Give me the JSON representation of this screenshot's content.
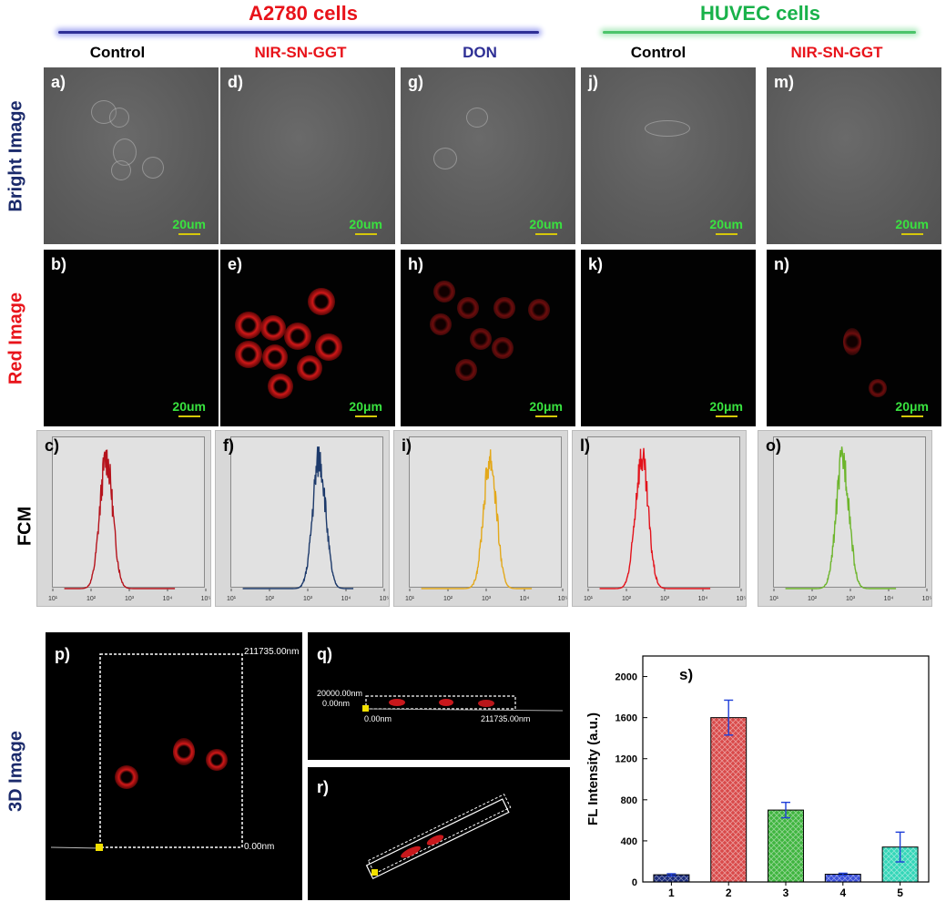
{
  "headers": {
    "a2780": "A2780 cells",
    "huvec": "HUVEC cells"
  },
  "columns": [
    "Control",
    "NIR-SN-GGT",
    "DON",
    "Control",
    "NIR-SN-GGT"
  ],
  "rows": {
    "bright": "Bright Image",
    "red": "Red Image",
    "fcm": "FCM",
    "threed": "3D Image"
  },
  "panels": {
    "bright": [
      {
        "label": "a)",
        "scale": "20um"
      },
      {
        "label": "d)",
        "scale": "20um"
      },
      {
        "label": "g)",
        "scale": "20um"
      },
      {
        "label": "j)",
        "scale": "20um"
      },
      {
        "label": "m)",
        "scale": "20um"
      }
    ],
    "red": [
      {
        "label": "b)",
        "scale": "20um"
      },
      {
        "label": "e)",
        "scale": "20μm"
      },
      {
        "label": "h)",
        "scale": "20μm"
      },
      {
        "label": "k)",
        "scale": "20μm"
      },
      {
        "label": "n)",
        "scale": "20μm"
      }
    ],
    "fcm": [
      {
        "label": "c)",
        "color": "#b5121b",
        "peak_log10": 2.4
      },
      {
        "label": "f)",
        "color": "#1d3a6b",
        "peak_log10": 3.3
      },
      {
        "label": "i)",
        "color": "#e3a81a",
        "peak_log10": 3.1
      },
      {
        "label": "l)",
        "color": "#e3121b",
        "peak_log10": 2.4
      },
      {
        "label": "o)",
        "color": "#6cb52b",
        "peak_log10": 2.8
      }
    ],
    "fcm_ticks": [
      "10¹",
      "10²",
      "10³",
      "10⁴",
      "10⁵"
    ]
  },
  "threed": {
    "p": {
      "label": "p)",
      "top_val": "211735.00nm",
      "bottom_val": "0.00nm"
    },
    "q": {
      "label": "q)",
      "y_top": "20000.00nm",
      "y_bottom": "0.00nm",
      "x_left": "0.00nm",
      "x_right": "211735.00nm"
    },
    "r": {
      "label": "r)"
    }
  },
  "chart_data": {
    "type": "bar",
    "title": "s)",
    "ylabel": "FL Intensity (a.u.)",
    "xlabel": "",
    "categories": [
      "1",
      "2",
      "3",
      "4",
      "5"
    ],
    "values": [
      70,
      1600,
      700,
      75,
      340
    ],
    "errors": [
      10,
      170,
      75,
      10,
      145
    ],
    "colors": [
      "#1a2a7a",
      "#d94a4a",
      "#3fb53f",
      "#3a4fd8",
      "#34d6b8"
    ],
    "ylim": [
      0,
      2200
    ],
    "yticks": [
      0,
      400,
      800,
      1200,
      1600,
      2000
    ]
  }
}
